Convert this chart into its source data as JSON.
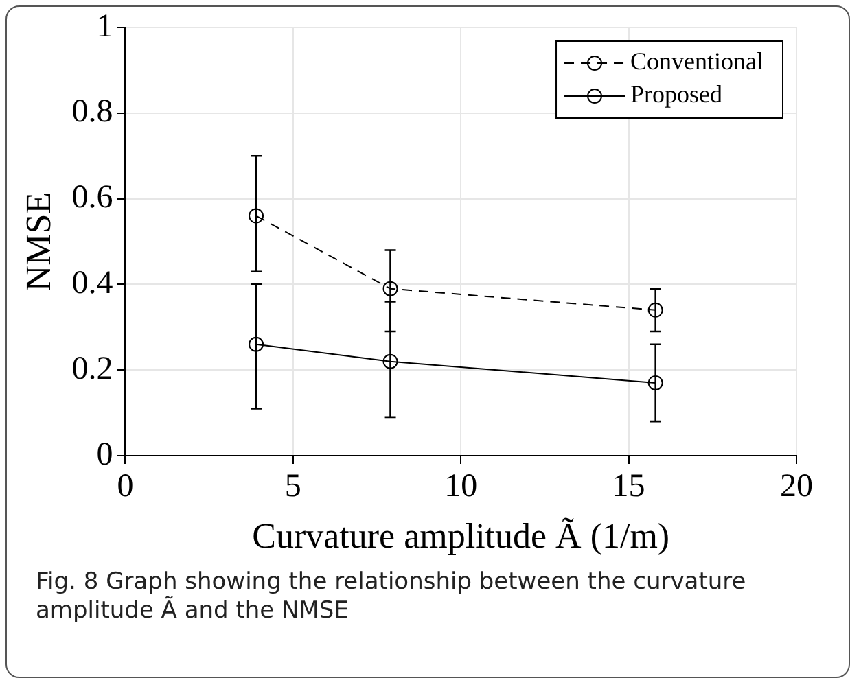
{
  "chart_data": {
    "type": "line",
    "xlabel": "Curvature amplitude Ã (1/m)",
    "ylabel": "NMSE",
    "x": [
      3.9,
      7.9,
      15.8
    ],
    "series": [
      {
        "name": "Conventional",
        "color": "#000000",
        "line_style": "dashed",
        "values": [
          0.56,
          0.39,
          0.34
        ],
        "errors": [
          [
            0.43,
            0.7
          ],
          [
            0.29,
            0.48
          ],
          [
            0.29,
            0.39
          ]
        ]
      },
      {
        "name": "Proposed",
        "color": "#000000",
        "line_style": "solid",
        "values": [
          0.26,
          0.22,
          0.17
        ],
        "errors": [
          [
            0.11,
            0.4
          ],
          [
            0.09,
            0.36
          ],
          [
            0.08,
            0.26
          ]
        ]
      }
    ],
    "xlim": [
      0,
      20
    ],
    "xticks": [
      0,
      5,
      10,
      15,
      20
    ],
    "ylim": [
      0,
      1
    ],
    "yticks": [
      0,
      0.2,
      0.4,
      0.6,
      0.8,
      1
    ],
    "grid": true,
    "legend": "top right",
    "marker": "circle",
    "annotations": [
      "Fig. 8 Graph showing the relationship between the curvature amplitude Ã and the NMSE"
    ]
  }
}
